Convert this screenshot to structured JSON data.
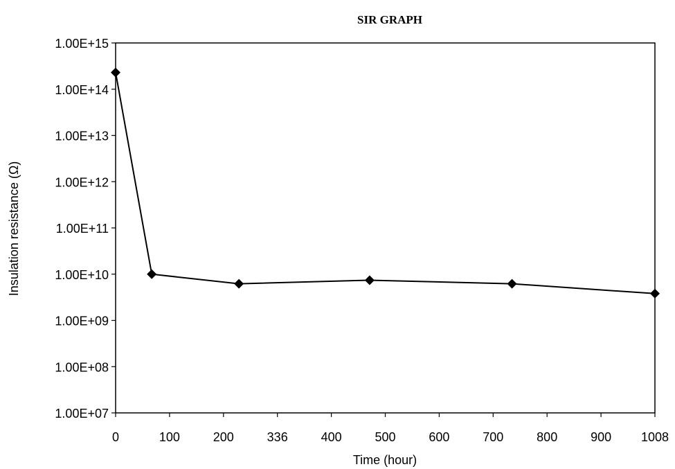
{
  "chart_data": {
    "type": "line",
    "title": "SIR GRAPH",
    "xlabel": "Time (hour)",
    "ylabel": "Insulation resistance (Ω)",
    "x_ticks": [
      0,
      100,
      200,
      336,
      400,
      500,
      600,
      700,
      800,
      900,
      1008
    ],
    "y_ticks": [
      "1.00E+07",
      "1.00E+08",
      "1.00E+09",
      "1.00E+10",
      "1.00E+11",
      "1.00E+12",
      "1.00E+13",
      "1.00E+14",
      "1.00E+15"
    ],
    "y_scale": "log",
    "ylim": [
      10000000,
      1000000000000000
    ],
    "xlim": [
      0,
      1008
    ],
    "grid": false,
    "marker": "diamond",
    "line_color": "#000000",
    "series": [
      {
        "x": [
          0,
          67,
          239,
          471,
          735,
          1008
        ],
        "y": [
          230000000000000,
          10000000000,
          6200000000,
          7400000000,
          6200000000,
          3800000000
        ]
      }
    ]
  }
}
